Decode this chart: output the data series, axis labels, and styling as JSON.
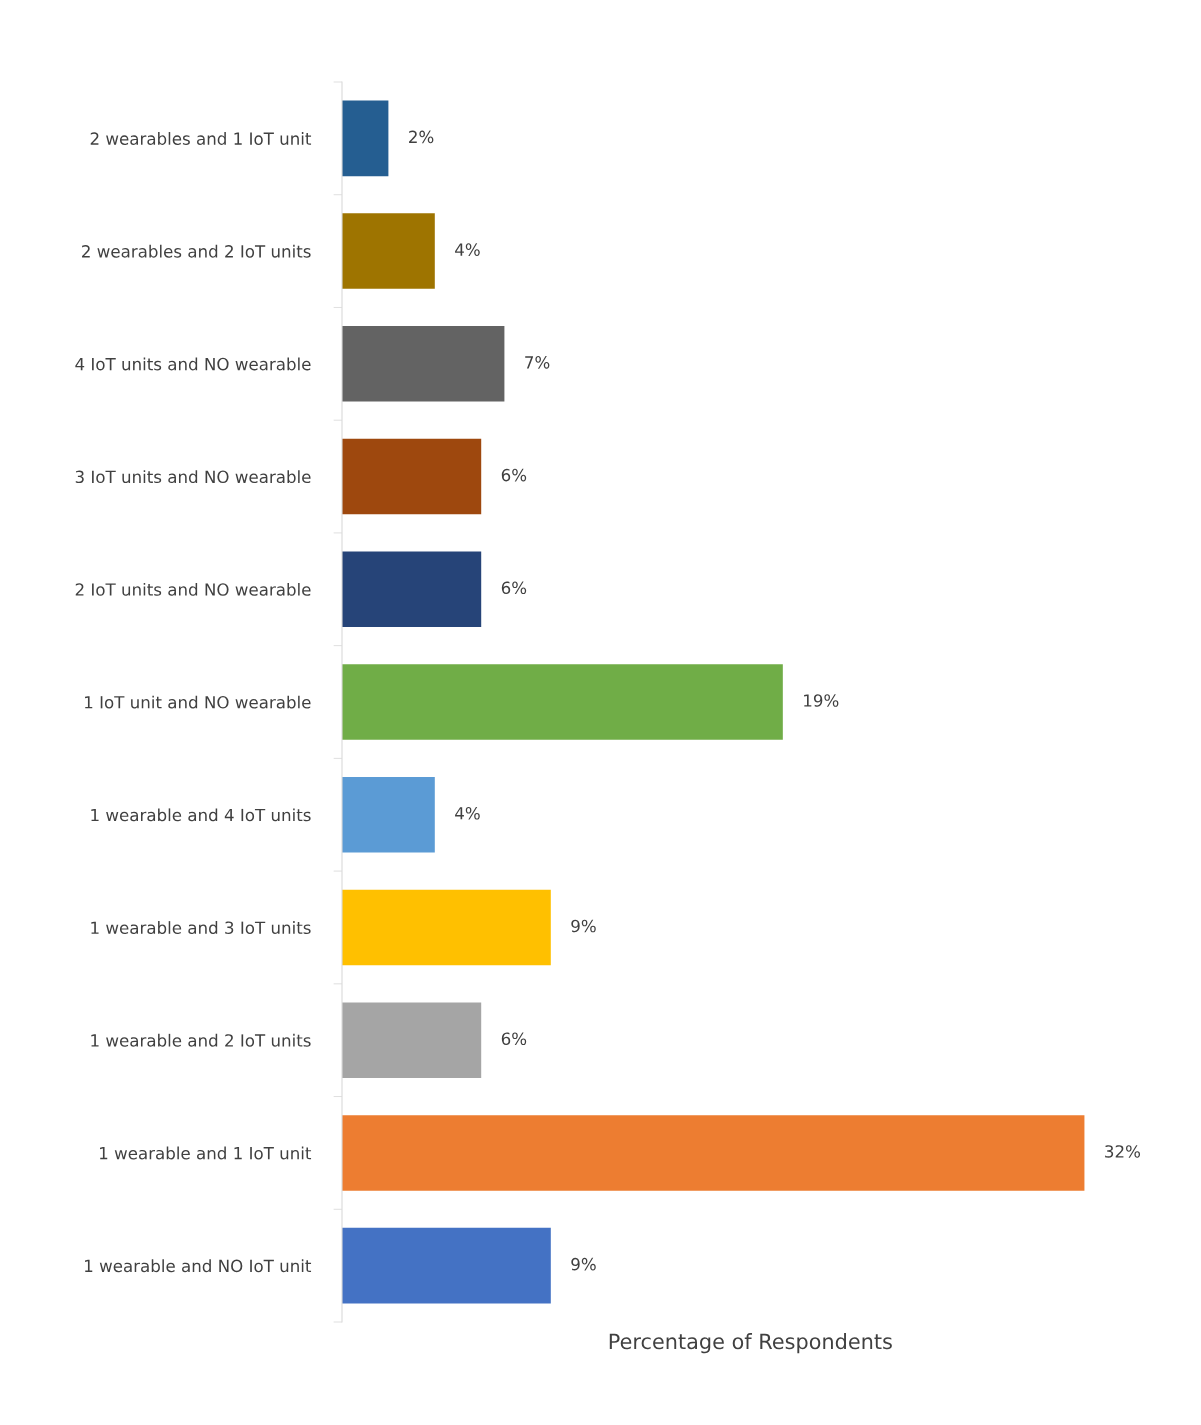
{
  "chart_data": {
    "type": "bar",
    "orientation": "horizontal",
    "xlabel": "Percentage of Respondents",
    "categories": [
      "2 wearables and 1 IoT unit",
      "2 wearables and 2 IoT units",
      "4 IoT units and NO wearable",
      "3 IoT units and NO wearable",
      "2 IoT units and NO wearable",
      "1 IoT unit and NO wearable",
      "1 wearable and 4 IoT units",
      "1 wearable and 3 IoT units",
      "1 wearable and 2 IoT units",
      "1 wearable and 1 IoT unit",
      "1 wearable and NO IoT unit"
    ],
    "values": [
      2,
      4,
      7,
      6,
      6,
      19,
      4,
      9,
      6,
      32,
      9
    ],
    "value_labels": [
      "2%",
      "4%",
      "7%",
      "6%",
      "6%",
      "19%",
      "4%",
      "9%",
      "6%",
      "32%",
      "9%"
    ],
    "colors": [
      "#255e91",
      "#9e7400",
      "#636363",
      "#9e480e",
      "#264478",
      "#70ad47",
      "#5b9bd5",
      "#ffc000",
      "#a5a5a5",
      "#ed7d31",
      "#4472c4"
    ],
    "grid": false,
    "legend": false
  }
}
